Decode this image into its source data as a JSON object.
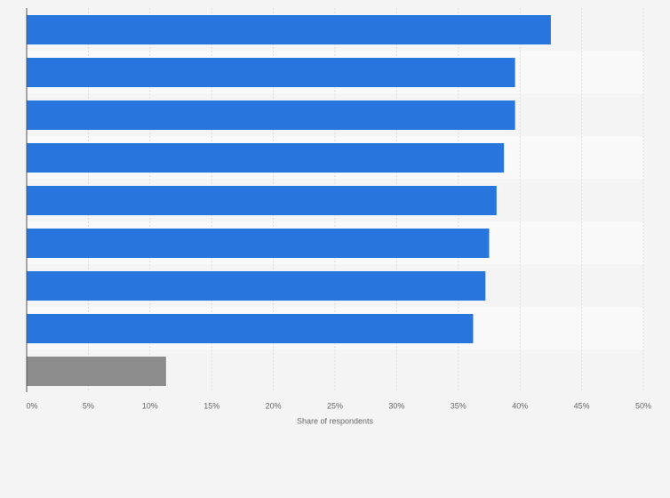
{
  "chart_data": {
    "type": "bar",
    "orientation": "horizontal",
    "x_label": "Share of respondents",
    "categories": [
      null,
      null,
      null,
      null,
      null,
      null,
      null,
      null,
      null
    ],
    "values": [
      42.5,
      39.6,
      39.6,
      38.7,
      38.1,
      37.5,
      37.2,
      36.2,
      11.3
    ],
    "colors": [
      "#2876dd",
      "#2876dd",
      "#2876dd",
      "#2876dd",
      "#2876dd",
      "#2876dd",
      "#2876dd",
      "#2876dd",
      "#8c8c8c"
    ],
    "xlim": [
      0,
      50
    ],
    "xticks": [
      {
        "value": 0,
        "label": "0%"
      },
      {
        "value": 5,
        "label": "5%"
      },
      {
        "value": 10,
        "label": "10%"
      },
      {
        "value": 15,
        "label": "15%"
      },
      {
        "value": 20,
        "label": "20%"
      },
      {
        "value": 25,
        "label": "25%"
      },
      {
        "value": 30,
        "label": "30%"
      },
      {
        "value": 35,
        "label": "35%"
      },
      {
        "value": 40,
        "label": "40%"
      },
      {
        "value": 45,
        "label": "45%"
      },
      {
        "value": 50,
        "label": "50%"
      }
    ],
    "grid": true
  }
}
